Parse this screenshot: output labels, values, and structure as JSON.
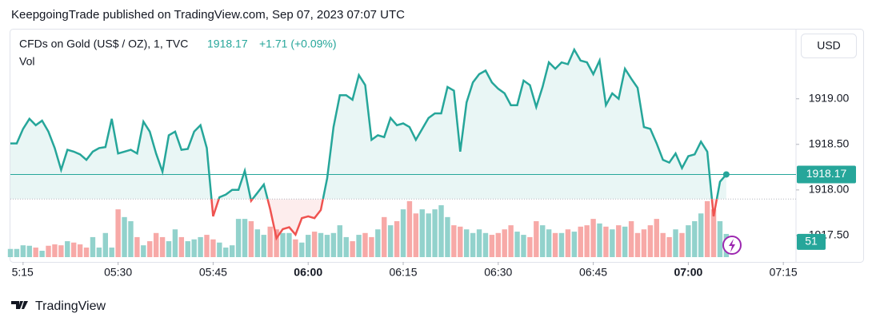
{
  "header": "KeepgoingTrade published on TradingView.com, Sep 07, 2023 07:07 UTC",
  "footer": "TradingView",
  "currency": "USD",
  "chart_data": {
    "type": "baseline",
    "change": "+1.71 (+0.09%)",
    "baseline": 1917.9,
    "up_color": "#26a69a",
    "down_color": "#ef5350",
    "x": [
      "05:13",
      "05:14",
      "05:15",
      "05:16",
      "05:17",
      "05:18",
      "05:19",
      "05:20",
      "05:21",
      "05:22",
      "05:23",
      "05:24",
      "05:25",
      "05:26",
      "05:27",
      "05:28",
      "05:29",
      "05:30",
      "05:31",
      "05:32",
      "05:33",
      "05:34",
      "05:35",
      "05:36",
      "05:37",
      "05:38",
      "05:39",
      "05:40",
      "05:41",
      "05:42",
      "05:43",
      "05:44",
      "05:45",
      "05:46",
      "05:47",
      "05:48",
      "05:49",
      "05:50",
      "05:51",
      "05:52",
      "05:53",
      "05:54",
      "05:55",
      "05:56",
      "05:57",
      "05:58",
      "05:59",
      "06:00",
      "06:01",
      "06:02",
      "06:03",
      "06:04",
      "06:05",
      "06:06",
      "06:07",
      "06:08",
      "06:09",
      "06:10",
      "06:11",
      "06:12",
      "06:13",
      "06:14",
      "06:15",
      "06:16",
      "06:17",
      "06:18",
      "06:19",
      "06:20",
      "06:21",
      "06:22",
      "06:23",
      "06:24",
      "06:25",
      "06:26",
      "06:27",
      "06:28",
      "06:29",
      "06:30",
      "06:31",
      "06:32",
      "06:33",
      "06:34",
      "06:35",
      "06:36",
      "06:37",
      "06:38",
      "06:39",
      "06:40",
      "06:41",
      "06:42",
      "06:43",
      "06:44",
      "06:45",
      "06:46",
      "06:47",
      "06:48",
      "06:49",
      "06:50",
      "06:51",
      "06:52",
      "06:53",
      "06:54",
      "06:55",
      "06:56",
      "06:57",
      "06:58",
      "06:59",
      "07:00",
      "07:01",
      "07:02",
      "07:03",
      "07:04",
      "07:05",
      "07:06"
    ],
    "series": [
      {
        "name": "CFDs on Gold (US$ / OZ), 1, TVC",
        "color": "#26a69a",
        "values": [
          1918.51,
          1918.51,
          1918.67,
          1918.78,
          1918.71,
          1918.76,
          1918.64,
          1918.46,
          1918.22,
          1918.44,
          1918.42,
          1918.39,
          1918.33,
          1918.42,
          1918.46,
          1918.47,
          1918.78,
          1918.4,
          1918.42,
          1918.44,
          1918.4,
          1918.75,
          1918.64,
          1918.4,
          1918.2,
          1918.6,
          1918.64,
          1918.44,
          1918.45,
          1918.64,
          1918.71,
          1918.46,
          1917.71,
          1917.92,
          1917.95,
          1918,
          1918,
          1918.21,
          1917.88,
          1917.97,
          1918.06,
          1917.79,
          1917.47,
          1917.57,
          1917.59,
          1917.51,
          1917.69,
          1917.71,
          1917.69,
          1917.78,
          1918.13,
          1918.69,
          1919.04,
          1919.04,
          1918.99,
          1919.26,
          1919.15,
          1918.55,
          1918.6,
          1918.58,
          1918.79,
          1918.71,
          1918.73,
          1918.69,
          1918.55,
          1918.67,
          1918.79,
          1918.84,
          1918.84,
          1919.13,
          1919.09,
          1918.42,
          1918.96,
          1919.18,
          1919.27,
          1919.31,
          1919.18,
          1919.11,
          1919.06,
          1918.93,
          1918.93,
          1919.2,
          1919.15,
          1918.91,
          1919.13,
          1919.4,
          1919.33,
          1919.4,
          1919.38,
          1919.54,
          1919.42,
          1919.4,
          1919.27,
          1919.42,
          1918.93,
          1919.06,
          1919,
          1919.33,
          1919.22,
          1919.12,
          1918.69,
          1918.67,
          1918.51,
          1918.33,
          1918.3,
          1918.4,
          1918.24,
          1918.37,
          1918.39,
          1918.53,
          1918.42,
          1917.71,
          1918.09,
          1918.17
        ]
      },
      {
        "name": "Vol",
        "axis": "volume",
        "color": "#92d2cc",
        "down_color": "#f7a9a7",
        "values": [
          18,
          18,
          26,
          25,
          21,
          14,
          25,
          28,
          26,
          35,
          32,
          28,
          21,
          44,
          21,
          53,
          21,
          105,
          88,
          79,
          44,
          26,
          35,
          53,
          44,
          35,
          61,
          44,
          35,
          39,
          44,
          49,
          39,
          32,
          21,
          26,
          84,
          84,
          79,
          61,
          49,
          67,
          61,
          53,
          53,
          39,
          32,
          49,
          56,
          53,
          49,
          53,
          70,
          44,
          35,
          49,
          53,
          44,
          61,
          88,
          70,
          79,
          105,
          123,
          96,
          105,
          96,
          105,
          114,
          88,
          70,
          67,
          61,
          53,
          61,
          53,
          49,
          53,
          61,
          70,
          56,
          49,
          44,
          79,
          70,
          61,
          53,
          53,
          61,
          56,
          67,
          70,
          84,
          74,
          67,
          61,
          70,
          67,
          79,
          53,
          61,
          70,
          84,
          53,
          44,
          61,
          53,
          70,
          79,
          96,
          123,
          105,
          79,
          51
        ]
      }
    ],
    "xlim": [
      "05:13",
      "07:17"
    ],
    "xticks": [
      {
        "value": "05:15",
        "label": "5:15"
      },
      "05:30",
      "05:45",
      "06:00",
      "06:15",
      "06:30",
      "06:45",
      "07:00",
      "07:15"
    ],
    "ylim": [
      1917.21,
      1919.76
    ],
    "yticks": [
      {
        "value": 1917.5,
        "label": "1917.50"
      },
      {
        "value": 1918,
        "label": "1918.00"
      },
      {
        "value": 1918.5,
        "label": "1918.50"
      },
      {
        "value": 1919,
        "label": "1919.00"
      }
    ],
    "volume_lim": [
      0,
      200
    ]
  }
}
